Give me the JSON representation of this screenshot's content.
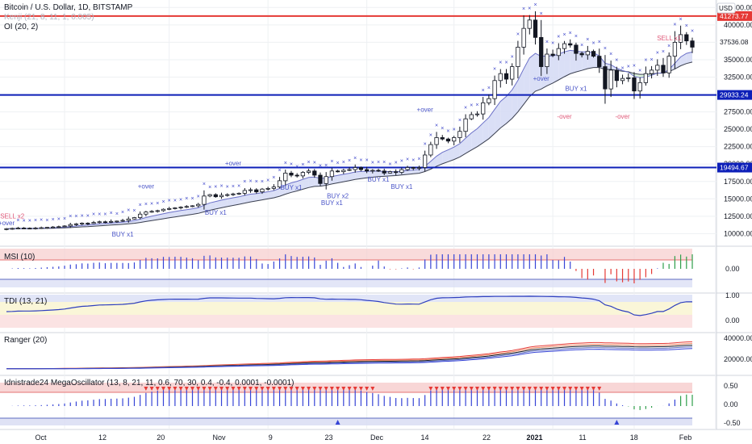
{
  "header": {
    "symbol": "Bitcoin / U.S. Dollar, 1D, BITSTAMP",
    "indicator_1": "Kenji (21, 8, 11, 1, 0.005)",
    "indicator_2": "OI (20, 2)",
    "currency": "USD"
  },
  "chart_data": [
    {
      "type": "candlestick",
      "title": "Bitcoin / U.S. Dollar, 1D, BITSTAMP",
      "x_ticks": [
        "Oct",
        "12",
        "20",
        "Nov",
        "9",
        "23",
        "Dec",
        "14",
        "22",
        "2021",
        "11",
        "18",
        "Feb"
      ],
      "y_ticks": [
        10000,
        12500,
        15000,
        17500,
        20000,
        22500,
        25000,
        27500,
        30000,
        32500,
        35000,
        37500,
        40000,
        42500
      ],
      "ylim": [
        9000,
        43000
      ],
      "close": [
        10700,
        10750,
        10800,
        10780,
        10760,
        10800,
        10850,
        10900,
        10950,
        11000,
        11100,
        11300,
        11400,
        11500,
        11450,
        11600,
        11700,
        11650,
        11750,
        11800,
        11900,
        12100,
        12300,
        12800,
        13100,
        13200,
        13300,
        13500,
        13600,
        13700,
        13800,
        13900,
        14000,
        14200,
        15400,
        15600,
        15300,
        15500,
        15600,
        15700,
        15800,
        16200,
        16300,
        16000,
        16400,
        16500,
        16700,
        17600,
        18700,
        18400,
        18300,
        18800,
        19000,
        18400,
        17200,
        18200,
        19000,
        18900,
        19100,
        19200,
        19500,
        19200,
        19000,
        19100,
        19000,
        18700,
        18900,
        18800,
        19200,
        19500,
        19400,
        19500,
        21300,
        22800,
        23800,
        23600,
        23300,
        23800,
        24700,
        26500,
        27100,
        27200,
        28800,
        29400,
        32000,
        33000,
        32200,
        34000,
        36800,
        39500,
        40700,
        38200,
        34000,
        35800,
        35600,
        36600,
        37300,
        37100,
        35900,
        35700,
        36200,
        35500,
        34000,
        30800,
        33500,
        32000,
        32300,
        32400,
        30500,
        31700,
        33000,
        33500,
        34200,
        33100,
        35500,
        37500,
        38600,
        37700,
        36800
      ],
      "annotations": [
        {
          "text": "SELL x2",
          "x": 1,
          "y": 12200
        },
        {
          "text": "+over",
          "x": 0,
          "y": 11200
        },
        {
          "text": "BUY x1",
          "x": 20,
          "y": 9600
        },
        {
          "text": "+over",
          "x": 24,
          "y": 16500
        },
        {
          "text": "+over",
          "x": 40,
          "y": 19800
        },
        {
          "text": "BUY x1",
          "x": 37,
          "y": 12700
        },
        {
          "text": "BUY x1",
          "x": 50,
          "y": 16300
        },
        {
          "text": "BUY x2",
          "x": 58,
          "y": 15100
        },
        {
          "text": "BUY x1",
          "x": 57,
          "y": 14100
        },
        {
          "text": "BUY x1",
          "x": 65,
          "y": 17500
        },
        {
          "text": "BUY x1",
          "x": 69,
          "y": 16400
        },
        {
          "text": "+over",
          "x": 73,
          "y": 27500
        },
        {
          "text": "+over",
          "x": 94,
          "y": 32000
        },
        {
          "text": "BUY x1",
          "x": 100,
          "y": 30500
        },
        {
          "text": "-over",
          "x": 98,
          "y": 26500
        },
        {
          "text": "-over",
          "x": 108,
          "y": 26500
        },
        {
          "text": "SELL x1",
          "x": 116,
          "y": 37800
        }
      ],
      "price_labels": [
        {
          "value": "41273.77",
          "color": "#e53935"
        },
        {
          "value": "37536.08",
          "color": "#131722"
        },
        {
          "value": "29933.24",
          "color": "#0d1fb8"
        },
        {
          "value": "19494.67",
          "color": "#0d1fb8"
        }
      ]
    },
    {
      "type": "bar",
      "title": "MSI (10)",
      "y_ticks": [
        "0.00"
      ]
    },
    {
      "type": "line",
      "title": "TDI (13, 21)",
      "y_ticks": [
        "1.00",
        "0.00"
      ]
    },
    {
      "type": "line",
      "title": "Ranger (20)",
      "y_ticks": [
        "40000.00",
        "20000.00"
      ]
    },
    {
      "type": "bar",
      "title": "Idnistrade24 MegaOscillator (13, 8, 21, 11, 0.6, 70, 30, 0.4, -0.4, 0.0001, -0.0001)",
      "y_ticks": [
        "0.50",
        "0.00",
        "-0.50"
      ]
    }
  ],
  "colors": {
    "bull_fill": "#ffffff",
    "bear_fill": "#131722",
    "red_line": "#e53935",
    "blue_line": "#0d1fb8",
    "cloud_blue": "#d6dcf5",
    "cloud_green": "#d8f2d8",
    "cross_marker": "#3b44c9",
    "bar_blue": "#3644d6",
    "bar_red": "#e53935",
    "bar_green": "#2e9e4a"
  }
}
